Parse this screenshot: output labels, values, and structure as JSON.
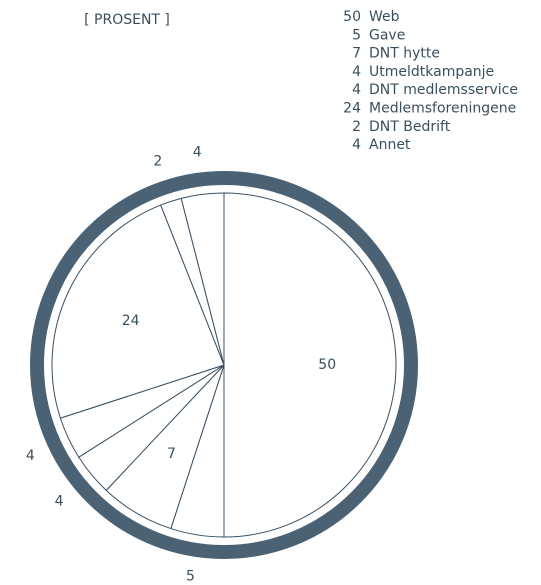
{
  "chart_data": {
    "type": "pie",
    "title": "[ PROSENT ]",
    "categories": [
      "Web",
      "Gave",
      "DNT hytte",
      "Utmeldtkampanje",
      "DNT medlemsservice",
      "Medlemsforeningene",
      "DNT Bedrift",
      "Annet"
    ],
    "values": [
      50,
      5,
      7,
      4,
      4,
      24,
      2,
      4
    ],
    "color": "#ffffff"
  }
}
